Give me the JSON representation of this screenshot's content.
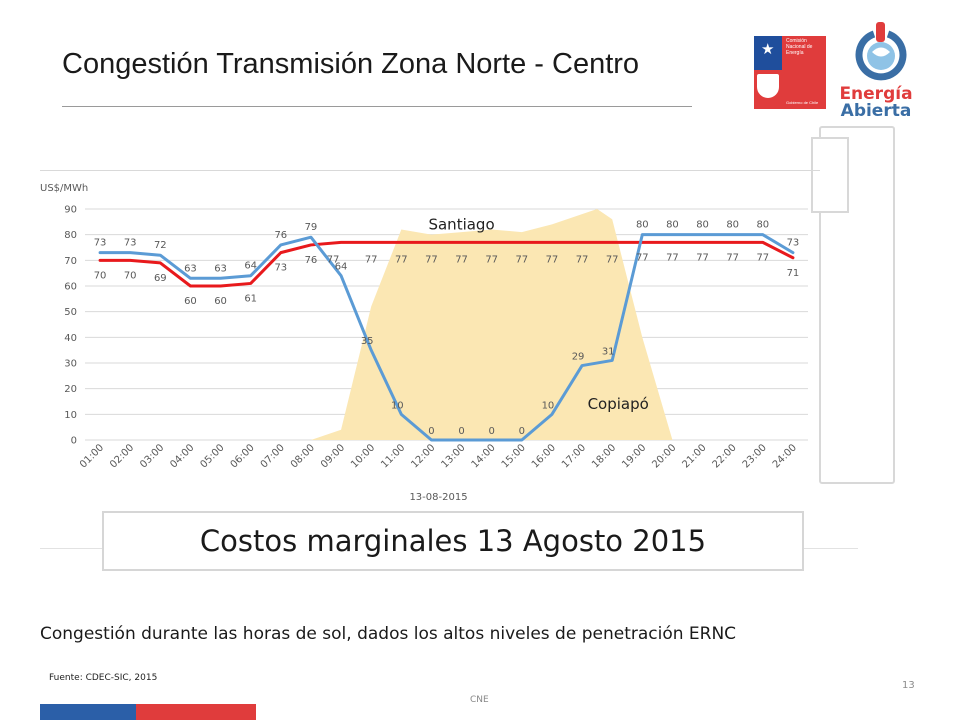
{
  "slide": {
    "title": "Congestión Transmisión Zona Norte - Centro",
    "caption": "Costos marginales 13 Agosto 2015",
    "note": "Congestión durante las horas de sol, dados los altos niveles de penetración ERNC",
    "source": "Fuente: CDEC-SIC, 2015",
    "footer": "CNE",
    "page_number": "13"
  },
  "logos": {
    "gov_lines": [
      "Comisión",
      "Nacional de",
      "Energía"
    ],
    "gov_footer": "Gobierno de Chile",
    "brand_line1": "Energía",
    "brand_line2": "Abierta"
  },
  "colors": {
    "copiapo_line": "#5b9bd5",
    "santiago_line": "#e8191c",
    "solar_area": "#fbe7b3",
    "grid": "#d9d9d9",
    "axis_text": "#595959"
  },
  "chart_data": {
    "type": "line",
    "ylabel": "US$/MWh",
    "xlabel": "13-08-2015",
    "ylim": [
      0,
      90
    ],
    "yticks": [
      0,
      10,
      20,
      30,
      40,
      50,
      60,
      70,
      80,
      90
    ],
    "grid": true,
    "categories": [
      "01:00",
      "02:00",
      "03:00",
      "04:00",
      "05:00",
      "06:00",
      "07:00",
      "08:00",
      "09:00",
      "10:00",
      "11:00",
      "12:00",
      "13:00",
      "14:00",
      "15:00",
      "16:00",
      "17:00",
      "18:00",
      "19:00",
      "20:00",
      "21:00",
      "22:00",
      "23:00",
      "24:00"
    ],
    "series": [
      {
        "name": "Copiapó",
        "values": [
          73,
          73,
          72,
          63,
          63,
          64,
          76,
          79,
          64,
          35,
          10,
          0,
          0,
          0,
          0,
          10,
          29,
          31,
          80,
          80,
          80,
          80,
          80,
          73
        ]
      },
      {
        "name": "Santiago",
        "values": [
          70,
          70,
          69,
          60,
          60,
          61,
          73,
          76,
          77,
          77,
          77,
          77,
          77,
          77,
          77,
          77,
          77,
          77,
          77,
          77,
          77,
          77,
          77,
          71
        ]
      }
    ],
    "background_area": {
      "x_hours": [
        8,
        9,
        10,
        11,
        12,
        13,
        14,
        15,
        16,
        17,
        17.5,
        18,
        19,
        20
      ],
      "values": [
        0,
        4,
        52,
        82,
        80,
        81,
        82,
        81,
        84,
        88,
        90,
        86,
        40,
        0
      ]
    }
  }
}
